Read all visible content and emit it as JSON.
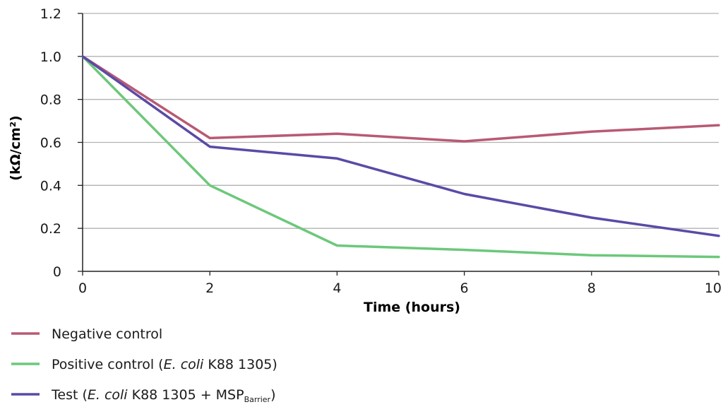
{
  "chart_data": {
    "type": "line",
    "title": "",
    "xlabel": "Time (hours)",
    "ylabel": "(kΩ/cm²)",
    "xlim": [
      0,
      10
    ],
    "ylim": [
      0,
      1.2
    ],
    "x_ticks": [
      0,
      2,
      4,
      6,
      8,
      10
    ],
    "y_ticks": [
      0,
      0.2,
      0.4,
      0.6,
      0.8,
      1.0,
      1.2
    ],
    "y_tick_labels": [
      "0",
      "0.2",
      "0.4",
      "0.6",
      "0.8",
      "1.0",
      "1.2"
    ],
    "x_tick_labels": [
      "0",
      "2",
      "4",
      "6",
      "8",
      "10"
    ],
    "grid": "horizontal",
    "legend_position": "bottom-left",
    "x": [
      0,
      2,
      4,
      6,
      8,
      10
    ],
    "series": [
      {
        "name": "Negative control",
        "legend_parts": [
          {
            "text": "Negative control",
            "style": "normal"
          }
        ],
        "color": "#b85a74",
        "values": [
          1.0,
          0.62,
          0.64,
          0.605,
          0.65,
          0.68
        ]
      },
      {
        "name": "Positive control (E. coli K88 1305)",
        "legend_parts": [
          {
            "text": "Positive control (",
            "style": "normal"
          },
          {
            "text": "E. coli",
            "style": "italic"
          },
          {
            "text": " K88 1305)",
            "style": "normal"
          }
        ],
        "color": "#6cc87a",
        "values": [
          1.0,
          0.4,
          0.12,
          0.1,
          0.075,
          0.067
        ]
      },
      {
        "name": "Test (E. coli K88 1305 + MSPBarrier)",
        "legend_parts": [
          {
            "text": "Test (",
            "style": "normal"
          },
          {
            "text": "E. coli",
            "style": "italic"
          },
          {
            "text": " K88 1305 + MSP",
            "style": "normal"
          },
          {
            "text": "Barrier",
            "style": "sub"
          },
          {
            "text": ")",
            "style": "normal"
          }
        ],
        "color": "#5b4aa6",
        "values": [
          1.0,
          0.58,
          0.525,
          0.36,
          0.25,
          0.165
        ]
      }
    ]
  }
}
